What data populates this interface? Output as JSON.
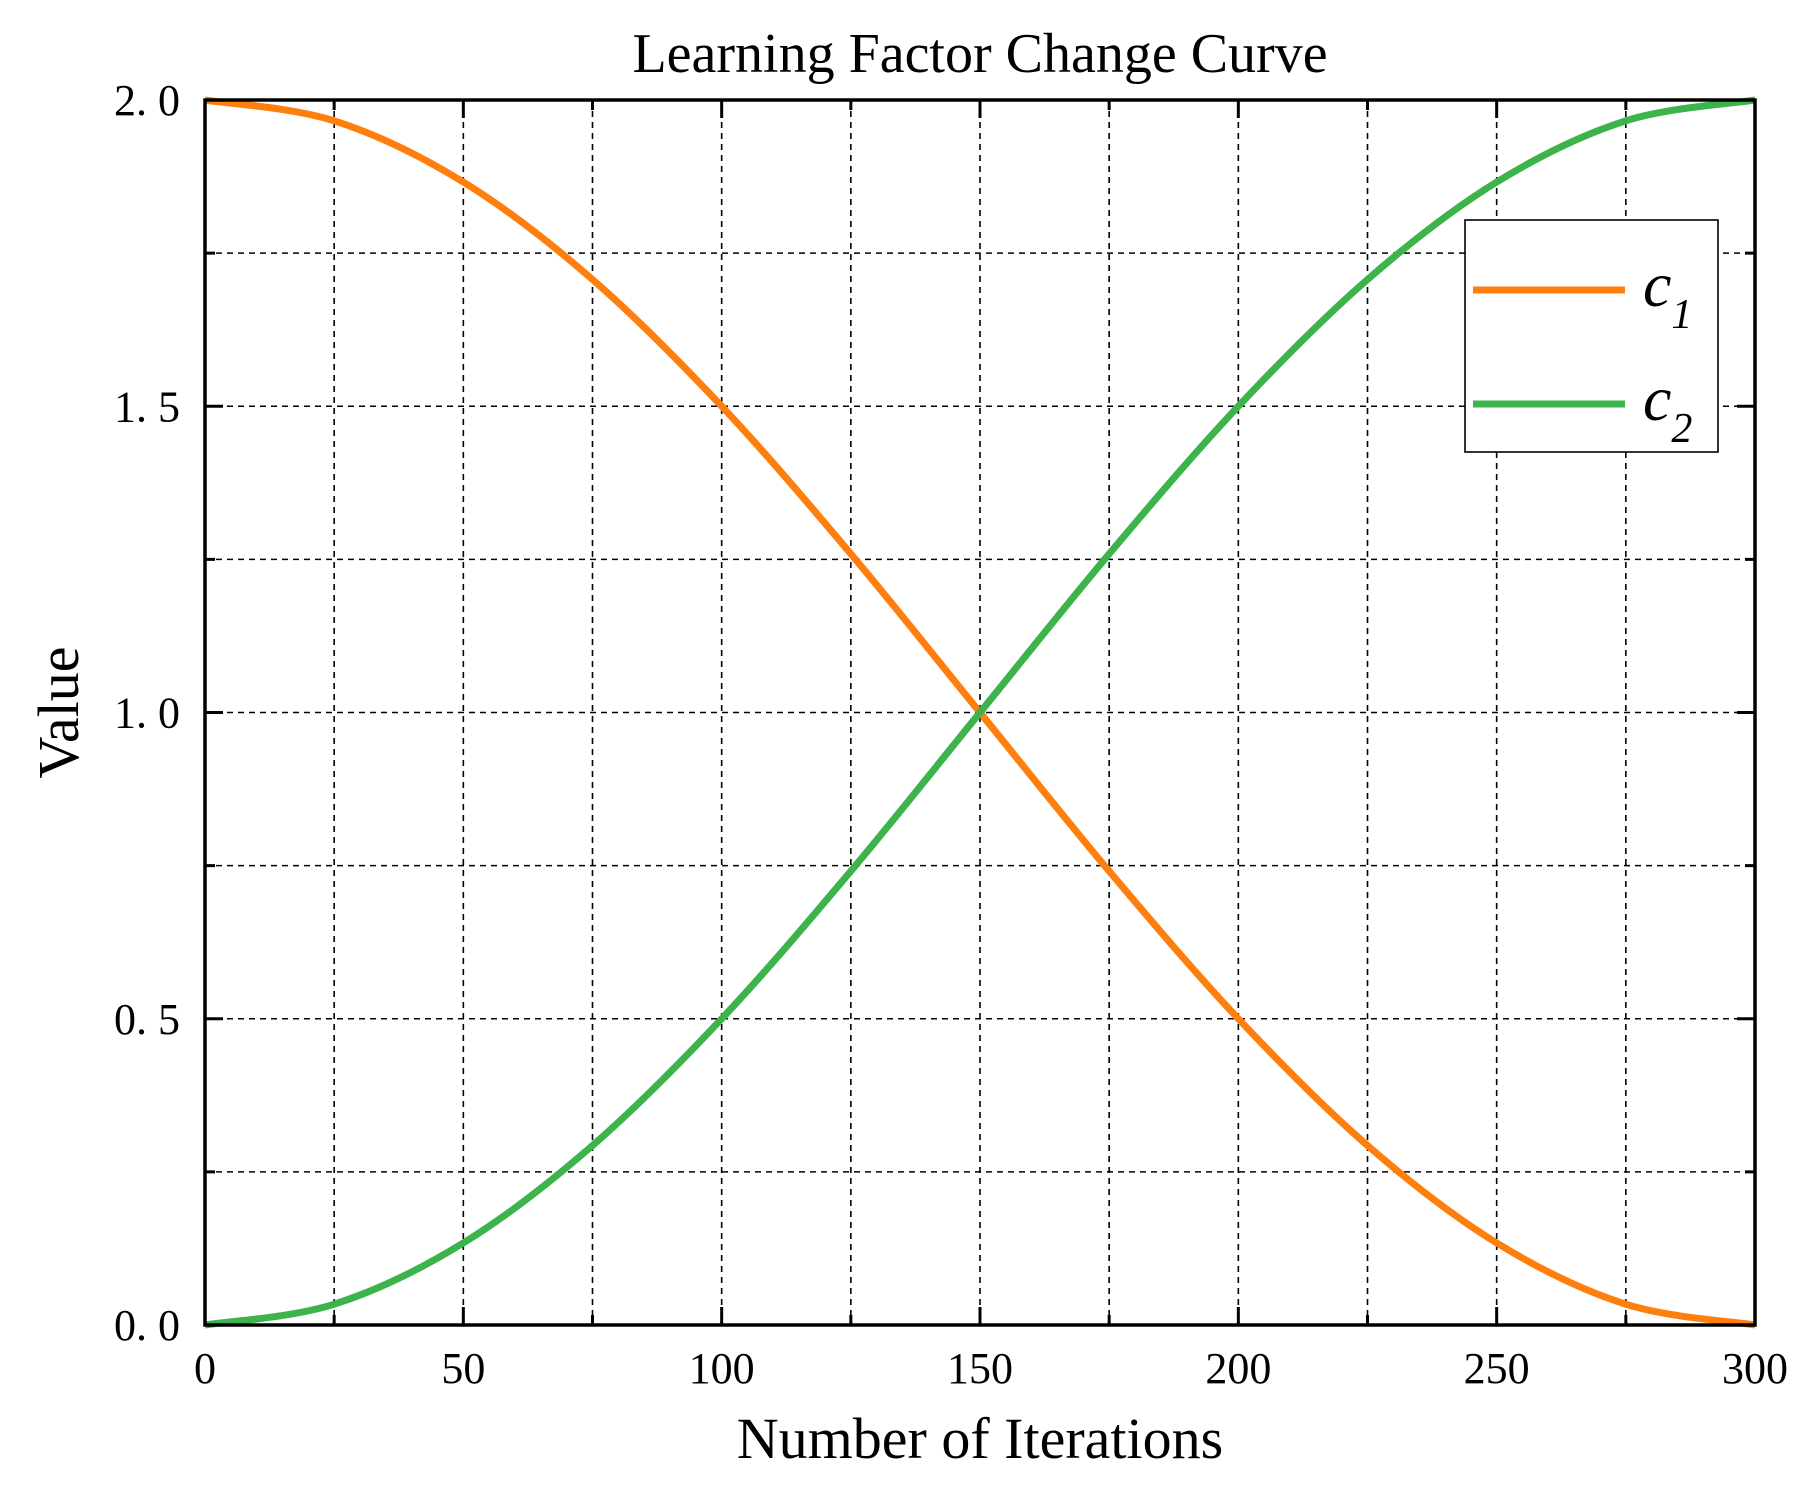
{
  "chart_data": {
    "type": "line",
    "title": "Learning Factor Change Curve",
    "xlabel": "Number of Iterations",
    "ylabel": "Value",
    "xlim": [
      0,
      300
    ],
    "ylim": [
      0,
      2
    ],
    "x_ticks": [
      0,
      50,
      100,
      150,
      200,
      250,
      300
    ],
    "x_tick_labels": [
      "0",
      "50",
      "100",
      "150",
      "200",
      "250",
      "300"
    ],
    "x_minor_ticks": [
      25,
      75,
      125,
      175,
      225,
      275
    ],
    "y_ticks": [
      0,
      0.5,
      1.0,
      1.5,
      2.0
    ],
    "y_tick_labels": [
      "0. 0",
      "0. 5",
      "1. 0",
      "1. 5",
      "2. 0"
    ],
    "y_minor_ticks": [
      0.25,
      0.75,
      1.25,
      1.75
    ],
    "grid": true,
    "legend_position": "top-right",
    "x": [
      0,
      25,
      50,
      75,
      100,
      125,
      150,
      175,
      200,
      225,
      250,
      275,
      300
    ],
    "series": [
      {
        "name": "c1",
        "label_main": "c",
        "label_sub": "1",
        "color": "#ff7f0e",
        "values": [
          2.0,
          1.966,
          1.866,
          1.707,
          1.5,
          1.259,
          1.0,
          0.741,
          0.5,
          0.293,
          0.134,
          0.034,
          0.0
        ]
      },
      {
        "name": "c2",
        "label_main": "c",
        "label_sub": "2",
        "color": "#3cb44b",
        "values": [
          0.0,
          0.034,
          0.134,
          0.293,
          0.5,
          0.741,
          1.0,
          1.259,
          1.5,
          1.707,
          1.866,
          1.966,
          2.0
        ]
      }
    ]
  }
}
